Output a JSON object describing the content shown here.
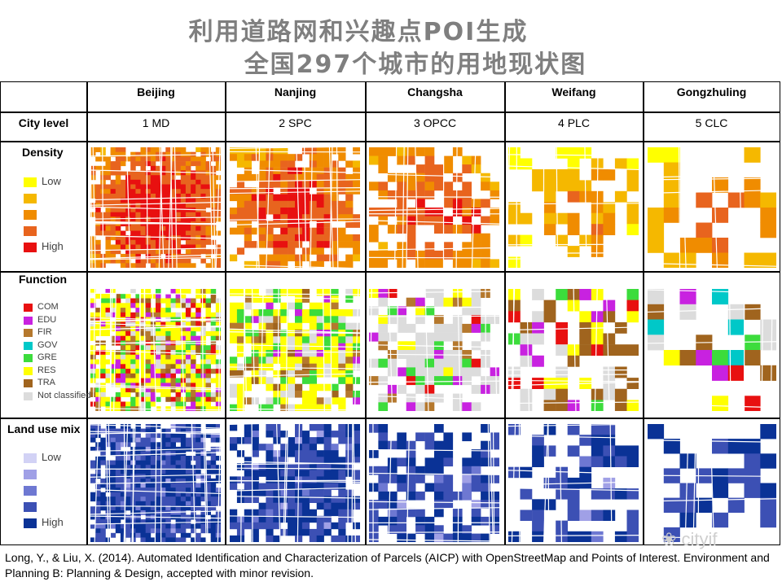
{
  "title": {
    "line1": "利用道路网和兴趣点POI生成",
    "line2": "全国297个城市的用地现状图"
  },
  "header_row": {
    "cities": [
      "Beijing",
      "Nanjing",
      "Changsha",
      "Weifang",
      "Gongzhuling"
    ]
  },
  "city_level_row": {
    "label": "City level",
    "values": [
      "1 MD",
      "2 SPC",
      "3 OPCC",
      "4 PLC",
      "5 CLC"
    ]
  },
  "density_row": {
    "label": "Density",
    "legend": [
      {
        "text": "Low",
        "color": "#ffff00"
      },
      {
        "text": "",
        "color": "#f5b800"
      },
      {
        "text": "",
        "color": "#f08c00"
      },
      {
        "text": "",
        "color": "#e8641e"
      },
      {
        "text": "High",
        "color": "#e81010"
      }
    ]
  },
  "function_row": {
    "label": "Function",
    "legend": [
      {
        "text": "COM",
        "color": "#e81010"
      },
      {
        "text": "EDU",
        "color": "#c822e0"
      },
      {
        "text": "FIR",
        "color": "#b5782d"
      },
      {
        "text": "GOV",
        "color": "#00c8c8"
      },
      {
        "text": "GRE",
        "color": "#3cdc3c"
      },
      {
        "text": "RES",
        "color": "#ffff00"
      },
      {
        "text": "TRA",
        "color": "#a0641e"
      },
      {
        "text": "Not classified",
        "color": "#dcdcdc"
      }
    ]
  },
  "landuse_row": {
    "label": "Land use mix",
    "legend": [
      {
        "text": "Low",
        "color": "#d2d2f5"
      },
      {
        "text": "",
        "color": "#a0a0e6"
      },
      {
        "text": "",
        "color": "#6e78d2"
      },
      {
        "text": "",
        "color": "#3c50b4"
      },
      {
        "text": "High",
        "color": "#0a3296"
      }
    ]
  },
  "citation": "Long, Y., & Liu, X. (2014). Automated Identification and Characterization of Parcels (AICP) with OpenStreetMap and Points of Interest. Environment and Planning B: Planning & Design, accepted with minor revision.",
  "watermark": "cityif"
}
